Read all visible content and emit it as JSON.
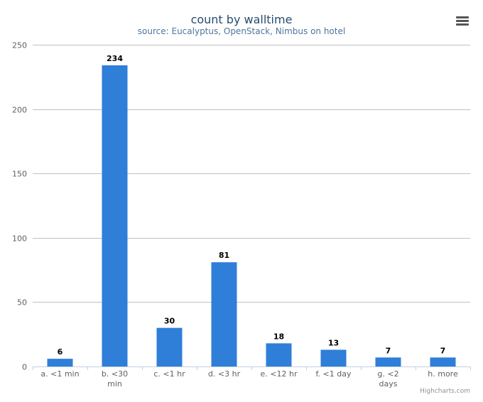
{
  "chart_data": {
    "type": "bar",
    "title": "count by walltime",
    "subtitle": "source: Eucalyptus, OpenStack, Nimbus on hotel",
    "categories": [
      "a. <1 min",
      "b. <30 min",
      "c. <1 hr",
      "d. <3 hr",
      "e. <12 hr",
      "f. <1 day",
      "g. <2 days",
      "h. more"
    ],
    "category_lines": [
      [
        "a. <1 min"
      ],
      [
        "b. <30",
        "min"
      ],
      [
        "c. <1 hr"
      ],
      [
        "d. <3 hr"
      ],
      [
        "e. <12 hr"
      ],
      [
        "f. <1 day"
      ],
      [
        "g. <2",
        "days"
      ],
      [
        "h. more"
      ]
    ],
    "values": [
      6,
      234,
      30,
      81,
      18,
      13,
      7,
      7
    ],
    "ylim": [
      0,
      250
    ],
    "yticks": [
      0,
      50,
      100,
      150,
      200,
      250
    ],
    "grid": true,
    "legend": "none",
    "bar_color": "#2f7ed8",
    "title_color": "#274b6d",
    "subtitle_color": "#4d759e"
  },
  "credits": "Highcharts.com",
  "menu_icon": "hamburger-menu-icon"
}
